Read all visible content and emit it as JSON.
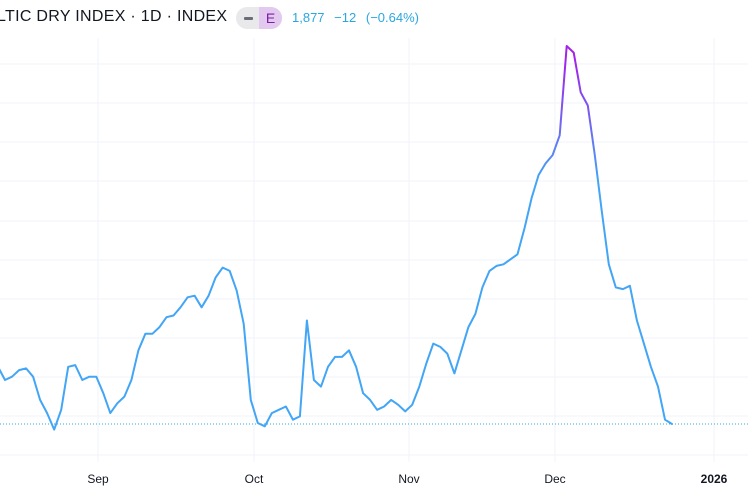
{
  "header": {
    "title": "LTIC DRY INDEX · 1D · INDEX",
    "earnings_badge": "E",
    "last_price": "1,877",
    "change": "−12",
    "change_pct": "(−0.64%)",
    "price_color": "#2ba7e0"
  },
  "chart_data": {
    "type": "line",
    "title": "",
    "xlabel": "",
    "ylabel": "",
    "x_tick_labels": [
      "Sep",
      "Oct",
      "Nov",
      "Dec",
      "2026"
    ],
    "gradient_colors": [
      "#42a5f5",
      "#a322ea"
    ],
    "last_value_line_color": "#2ba7e0",
    "grid": true,
    "series": [
      {
        "values": [
          2050,
          2010,
          2020,
          2040,
          2045,
          2020,
          1950,
          1910,
          1860,
          1920,
          2050,
          2055,
          2010,
          2020,
          2020,
          1970,
          1910,
          1940,
          1960,
          2010,
          2100,
          2150,
          2150,
          2170,
          2200,
          2205,
          2230,
          2260,
          2265,
          2230,
          2265,
          2320,
          2350,
          2340,
          2280,
          2180,
          1950,
          1880,
          1870,
          1910,
          1920,
          1930,
          1890,
          1900,
          2190,
          2010,
          1990,
          2050,
          2080,
          2080,
          2100,
          2050,
          1970,
          1950,
          1920,
          1930,
          1950,
          1935,
          1915,
          1935,
          1990,
          2060,
          2120,
          2110,
          2090,
          2030,
          2100,
          2170,
          2210,
          2290,
          2340,
          2355,
          2360,
          2375,
          2390,
          2470,
          2560,
          2630,
          2665,
          2690,
          2750,
          3020,
          3000,
          2880,
          2840,
          2690,
          2520,
          2360,
          2290,
          2285,
          2295,
          2190,
          2120,
          2050,
          1990,
          1890,
          1877
        ]
      }
    ]
  }
}
